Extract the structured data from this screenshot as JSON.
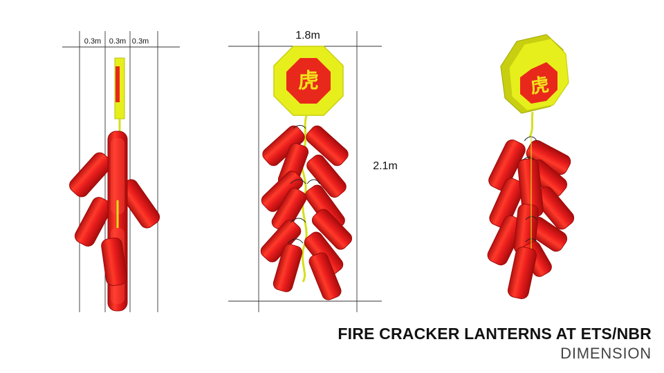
{
  "title": "FIRE CRACKER LANTERNS AT ETS/NBR",
  "subtitle": "DIMENSION",
  "side_view": {
    "dims": [
      "0.3m",
      "0.3m",
      "0.3m"
    ]
  },
  "front_view": {
    "width_label": "1.8m",
    "height_label": "2.1m",
    "sign_glyph": "虎"
  },
  "perspective_view": {
    "sign_glyph": "虎"
  },
  "colors": {
    "cracker_red": "#e21b1b",
    "cracker_dark": "#a80f0f",
    "sign_yellow": "#e6ef1c",
    "sign_yellow_dark": "#c8cf10",
    "sign_red": "#e9281c",
    "glyph_yellow": "#f2e21a",
    "fuse": "#d4e01a",
    "dim_line": "#333333"
  }
}
